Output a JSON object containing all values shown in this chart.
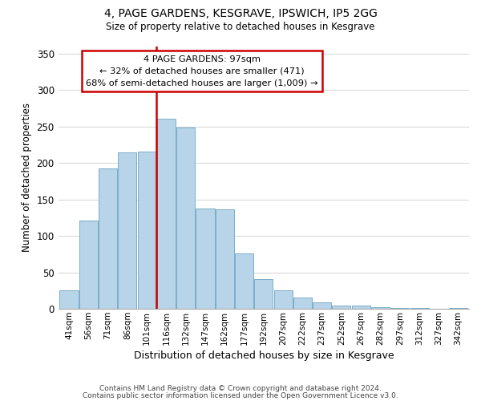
{
  "title": "4, PAGE GARDENS, KESGRAVE, IPSWICH, IP5 2GG",
  "subtitle": "Size of property relative to detached houses in Kesgrave",
  "xlabel": "Distribution of detached houses by size in Kesgrave",
  "ylabel": "Number of detached properties",
  "bar_labels": [
    "41sqm",
    "56sqm",
    "71sqm",
    "86sqm",
    "101sqm",
    "116sqm",
    "132sqm",
    "147sqm",
    "162sqm",
    "177sqm",
    "192sqm",
    "207sqm",
    "222sqm",
    "237sqm",
    "252sqm",
    "267sqm",
    "282sqm",
    "297sqm",
    "312sqm",
    "327sqm",
    "342sqm"
  ],
  "bar_values": [
    25,
    121,
    192,
    214,
    215,
    261,
    248,
    137,
    136,
    76,
    41,
    25,
    16,
    9,
    5,
    5,
    2,
    1,
    1,
    0,
    1
  ],
  "bar_color": "#b8d4e8",
  "bar_edge_color": "#7aaec8",
  "vline_color": "#cc0000",
  "annotation_title": "4 PAGE GARDENS: 97sqm",
  "annotation_line1": "← 32% of detached houses are smaller (471)",
  "annotation_line2": "68% of semi-detached houses are larger (1,009) →",
  "annotation_box_color": "#ffffff",
  "annotation_box_edge": "#cc0000",
  "ylim": [
    0,
    360
  ],
  "yticks": [
    0,
    50,
    100,
    150,
    200,
    250,
    300,
    350
  ],
  "footer_line1": "Contains HM Land Registry data © Crown copyright and database right 2024.",
  "footer_line2": "Contains public sector information licensed under the Open Government Licence v3.0."
}
